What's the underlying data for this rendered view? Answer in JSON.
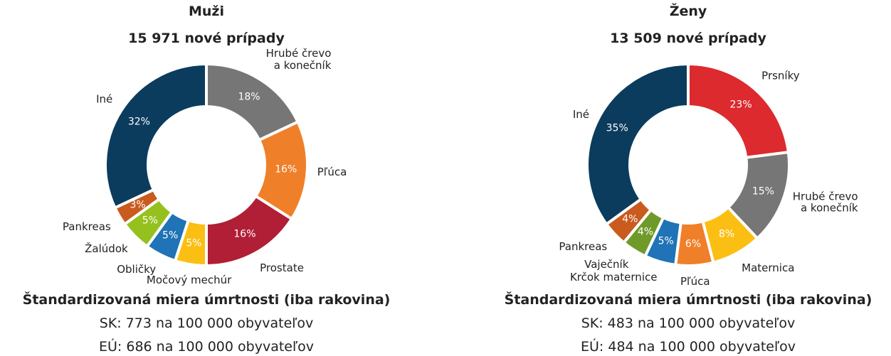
{
  "chart_data": [
    {
      "type": "pie",
      "title": "Muži",
      "subtitle": "15 971 nové prípady",
      "categories": [
        "Hrubé črevo\na konečník",
        "Pľúca",
        "Prostate",
        "Močový mechúr",
        "Obličky",
        "Žalúdok",
        "Pankreas",
        "Iné"
      ],
      "values": [
        18,
        16,
        16,
        5,
        5,
        5,
        3,
        32
      ],
      "value_labels": [
        "18%",
        "16%",
        "16%",
        "5%",
        "5%",
        "5%",
        "3%",
        "32%"
      ],
      "colors": [
        "#767676",
        "#f07f2a",
        "#b01f35",
        "#fbbf14",
        "#1f73b6",
        "#95c11f",
        "#c95b1e",
        "#0b3c5d"
      ],
      "notes": [
        "Štandardizovaná miera úmrtnosti (iba rakovina)",
        "SK: 773 na 100 000 obyvateľov",
        "EÚ: 686 na 100 000 obyvateľov"
      ]
    },
    {
      "type": "pie",
      "title": "Ženy",
      "subtitle": "13 509 nové prípady",
      "categories": [
        "Prsníky",
        "Hrubé črevo\na konečník",
        "Maternica",
        "Pľúca",
        "Krčok maternice",
        "Vaječník",
        "Pankreas",
        "Iné"
      ],
      "values": [
        23,
        15,
        8,
        6,
        5,
        4,
        4,
        35
      ],
      "value_labels": [
        "23%",
        "15%",
        "8%",
        "6%",
        "5%",
        "4%",
        "4%",
        "35%"
      ],
      "colors": [
        "#dc2a2e",
        "#767676",
        "#fbbf14",
        "#f07f2a",
        "#1f73b6",
        "#6f9a2a",
        "#c95b1e",
        "#0b3c5d"
      ],
      "notes": [
        "Štandardizovaná miera úmrtnosti (iba rakovina)",
        "SK: 483 na 100 000 obyvateľov",
        "EÚ: 484 na 100 000 obyvateľov"
      ]
    }
  ]
}
